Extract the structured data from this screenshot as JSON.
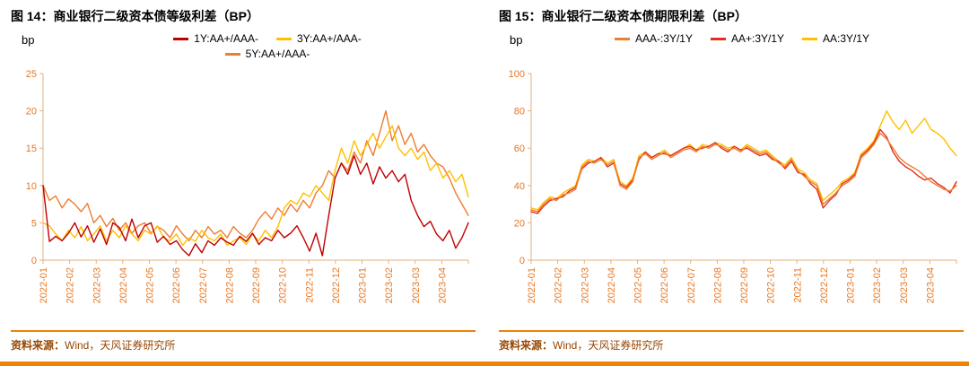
{
  "style": {
    "accent": "#EF8200",
    "tick_color": "#E87722",
    "axis_color": "#E2B27E",
    "source_color": "#974806",
    "series_colors": {
      "dark_red": "#C00000",
      "orange": "#ED7D31",
      "yellow": "#FFC000",
      "red": "#E0301E"
    }
  },
  "source": {
    "label": "资料来源：",
    "text": "Wind，天风证券研究所"
  },
  "chart_data": [
    {
      "type": "line",
      "figure_label": "图 14：",
      "title": "商业银行二级资本债等级利差（BP）",
      "unit": "bp",
      "ylim": [
        0,
        25
      ],
      "y_ticks": [
        0,
        5,
        10,
        15,
        20,
        25
      ],
      "grid": false,
      "legend_position": "top",
      "x_labels": [
        "2022-01",
        "2022-02",
        "2022-03",
        "2022-04",
        "2022-05",
        "2022-06",
        "2022-07",
        "2022-08",
        "2022-09",
        "2022-10",
        "2022-11",
        "2022-12",
        "2023-01",
        "2023-02",
        "2023-03",
        "2023-04"
      ],
      "series": [
        {
          "name": "1Y:AA+/AAA-",
          "color": "#C00000",
          "values": [
            10,
            2.5,
            3.2,
            2.6,
            3.6,
            5,
            3.1,
            4.6,
            2.4,
            4.2,
            2.1,
            5,
            4.4,
            2.6,
            5.5,
            3,
            4.6,
            5,
            2.4,
            3.2,
            2.1,
            2.6,
            1.4,
            0.6,
            2.2,
            1,
            2.6,
            2,
            3,
            2.4,
            2,
            3.2,
            2.5,
            3.6,
            2.1,
            3,
            2.6,
            4,
            3,
            3.6,
            4.6,
            3,
            1.2,
            3.6,
            0.6,
            6,
            11,
            13,
            11.5,
            14,
            11.5,
            13,
            10.2,
            12.5,
            11,
            12,
            10.5,
            11.5,
            8,
            6,
            4.5,
            5.2,
            3.5,
            2.6,
            4,
            1.6,
            3,
            5
          ]
        },
        {
          "name": "3Y:AA+/AAA-",
          "color": "#FFC000",
          "values": [
            5,
            4.6,
            3.5,
            2.6,
            4,
            3,
            4.5,
            2.6,
            3.5,
            4.6,
            2.6,
            4,
            3,
            4.6,
            3.5,
            2.6,
            4,
            3.5,
            4.6,
            3,
            2.6,
            3.5,
            2,
            3,
            2.5,
            4,
            3,
            2.6,
            3.5,
            2,
            2.6,
            3,
            2.1,
            3.5,
            2.6,
            4,
            3,
            4.5,
            7,
            8,
            7.5,
            9,
            8.5,
            10,
            9,
            8,
            12,
            15,
            13,
            16,
            14,
            15.5,
            17,
            15,
            16.5,
            18,
            15,
            14,
            15,
            13.5,
            14.5,
            12,
            13,
            11,
            12,
            10.5,
            11.5,
            8.5
          ]
        },
        {
          "name": "5Y:AA+/AAA-",
          "color": "#ED7D31",
          "values": [
            10,
            8,
            8.6,
            7,
            8.2,
            7.5,
            6.5,
            7.6,
            5,
            6,
            4.5,
            5.6,
            4,
            5,
            3.6,
            4.6,
            5,
            3.6,
            4.5,
            4,
            3,
            4.6,
            3.5,
            2.6,
            4,
            3,
            4.5,
            3.5,
            4,
            3,
            4.5,
            3.6,
            3,
            4,
            5.5,
            6.5,
            5.5,
            7,
            6,
            7.5,
            6.5,
            8,
            7,
            9,
            10,
            12,
            11,
            13,
            12,
            14.5,
            13,
            16,
            14,
            17,
            20,
            16,
            18,
            15.5,
            17,
            14.5,
            15.5,
            14,
            13,
            12.5,
            11,
            9,
            7.5,
            6
          ]
        }
      ]
    },
    {
      "type": "line",
      "figure_label": "图 15：",
      "title": "商业银行二级资本债期限利差（BP）",
      "unit": "bp",
      "ylim": [
        0,
        100
      ],
      "y_ticks": [
        0,
        20,
        40,
        60,
        80,
        100
      ],
      "grid": false,
      "legend_position": "top",
      "x_labels": [
        "2022-01",
        "2022-02",
        "2022-03",
        "2022-04",
        "2022-05",
        "2022-06",
        "2022-07",
        "2022-08",
        "2022-09",
        "2022-10",
        "2022-11",
        "2022-12",
        "2023-01",
        "2023-02",
        "2023-03",
        "2023-04"
      ],
      "series": [
        {
          "name": "AAA-:3Y/1Y",
          "color": "#ED7D31",
          "values": [
            27,
            26,
            30,
            33,
            32,
            35,
            36,
            38,
            50,
            53,
            52,
            54,
            51,
            53,
            40,
            38,
            42,
            55,
            57,
            54,
            56,
            58,
            55,
            57,
            59,
            60,
            58,
            61,
            60,
            62,
            61,
            59,
            60,
            58,
            61,
            59,
            57,
            58,
            55,
            52,
            50,
            54,
            48,
            45,
            42,
            40,
            30,
            33,
            36,
            40,
            42,
            45,
            55,
            58,
            62,
            68,
            65,
            60,
            55,
            52,
            50,
            48,
            45,
            42,
            40,
            38,
            37,
            40
          ]
        },
        {
          "name": "AA+:3Y/1Y",
          "color": "#E0301E",
          "values": [
            26,
            25,
            29,
            32,
            33,
            34,
            37,
            39,
            49,
            52,
            53,
            55,
            50,
            52,
            41,
            39,
            43,
            54,
            58,
            55,
            57,
            57,
            56,
            58,
            60,
            61,
            59,
            60,
            61,
            63,
            60,
            58,
            61,
            59,
            60,
            58,
            56,
            57,
            54,
            53,
            49,
            53,
            47,
            46,
            41,
            38,
            28,
            32,
            35,
            41,
            43,
            46,
            56,
            59,
            63,
            70,
            66,
            58,
            53,
            50,
            48,
            45,
            43,
            44,
            41,
            39,
            36,
            42
          ]
        },
        {
          "name": "AA:3Y/1Y",
          "color": "#FFC000",
          "values": [
            28,
            27,
            31,
            34,
            33,
            36,
            38,
            40,
            51,
            54,
            53,
            55,
            52,
            54,
            42,
            40,
            44,
            56,
            58,
            55,
            57,
            59,
            56,
            58,
            60,
            62,
            59,
            62,
            61,
            63,
            62,
            60,
            61,
            59,
            62,
            60,
            58,
            59,
            56,
            53,
            51,
            55,
            49,
            47,
            43,
            41,
            32,
            35,
            38,
            42,
            44,
            47,
            57,
            60,
            64,
            72,
            80,
            74,
            70,
            75,
            68,
            72,
            76,
            70,
            68,
            65,
            60,
            56
          ]
        }
      ]
    }
  ]
}
